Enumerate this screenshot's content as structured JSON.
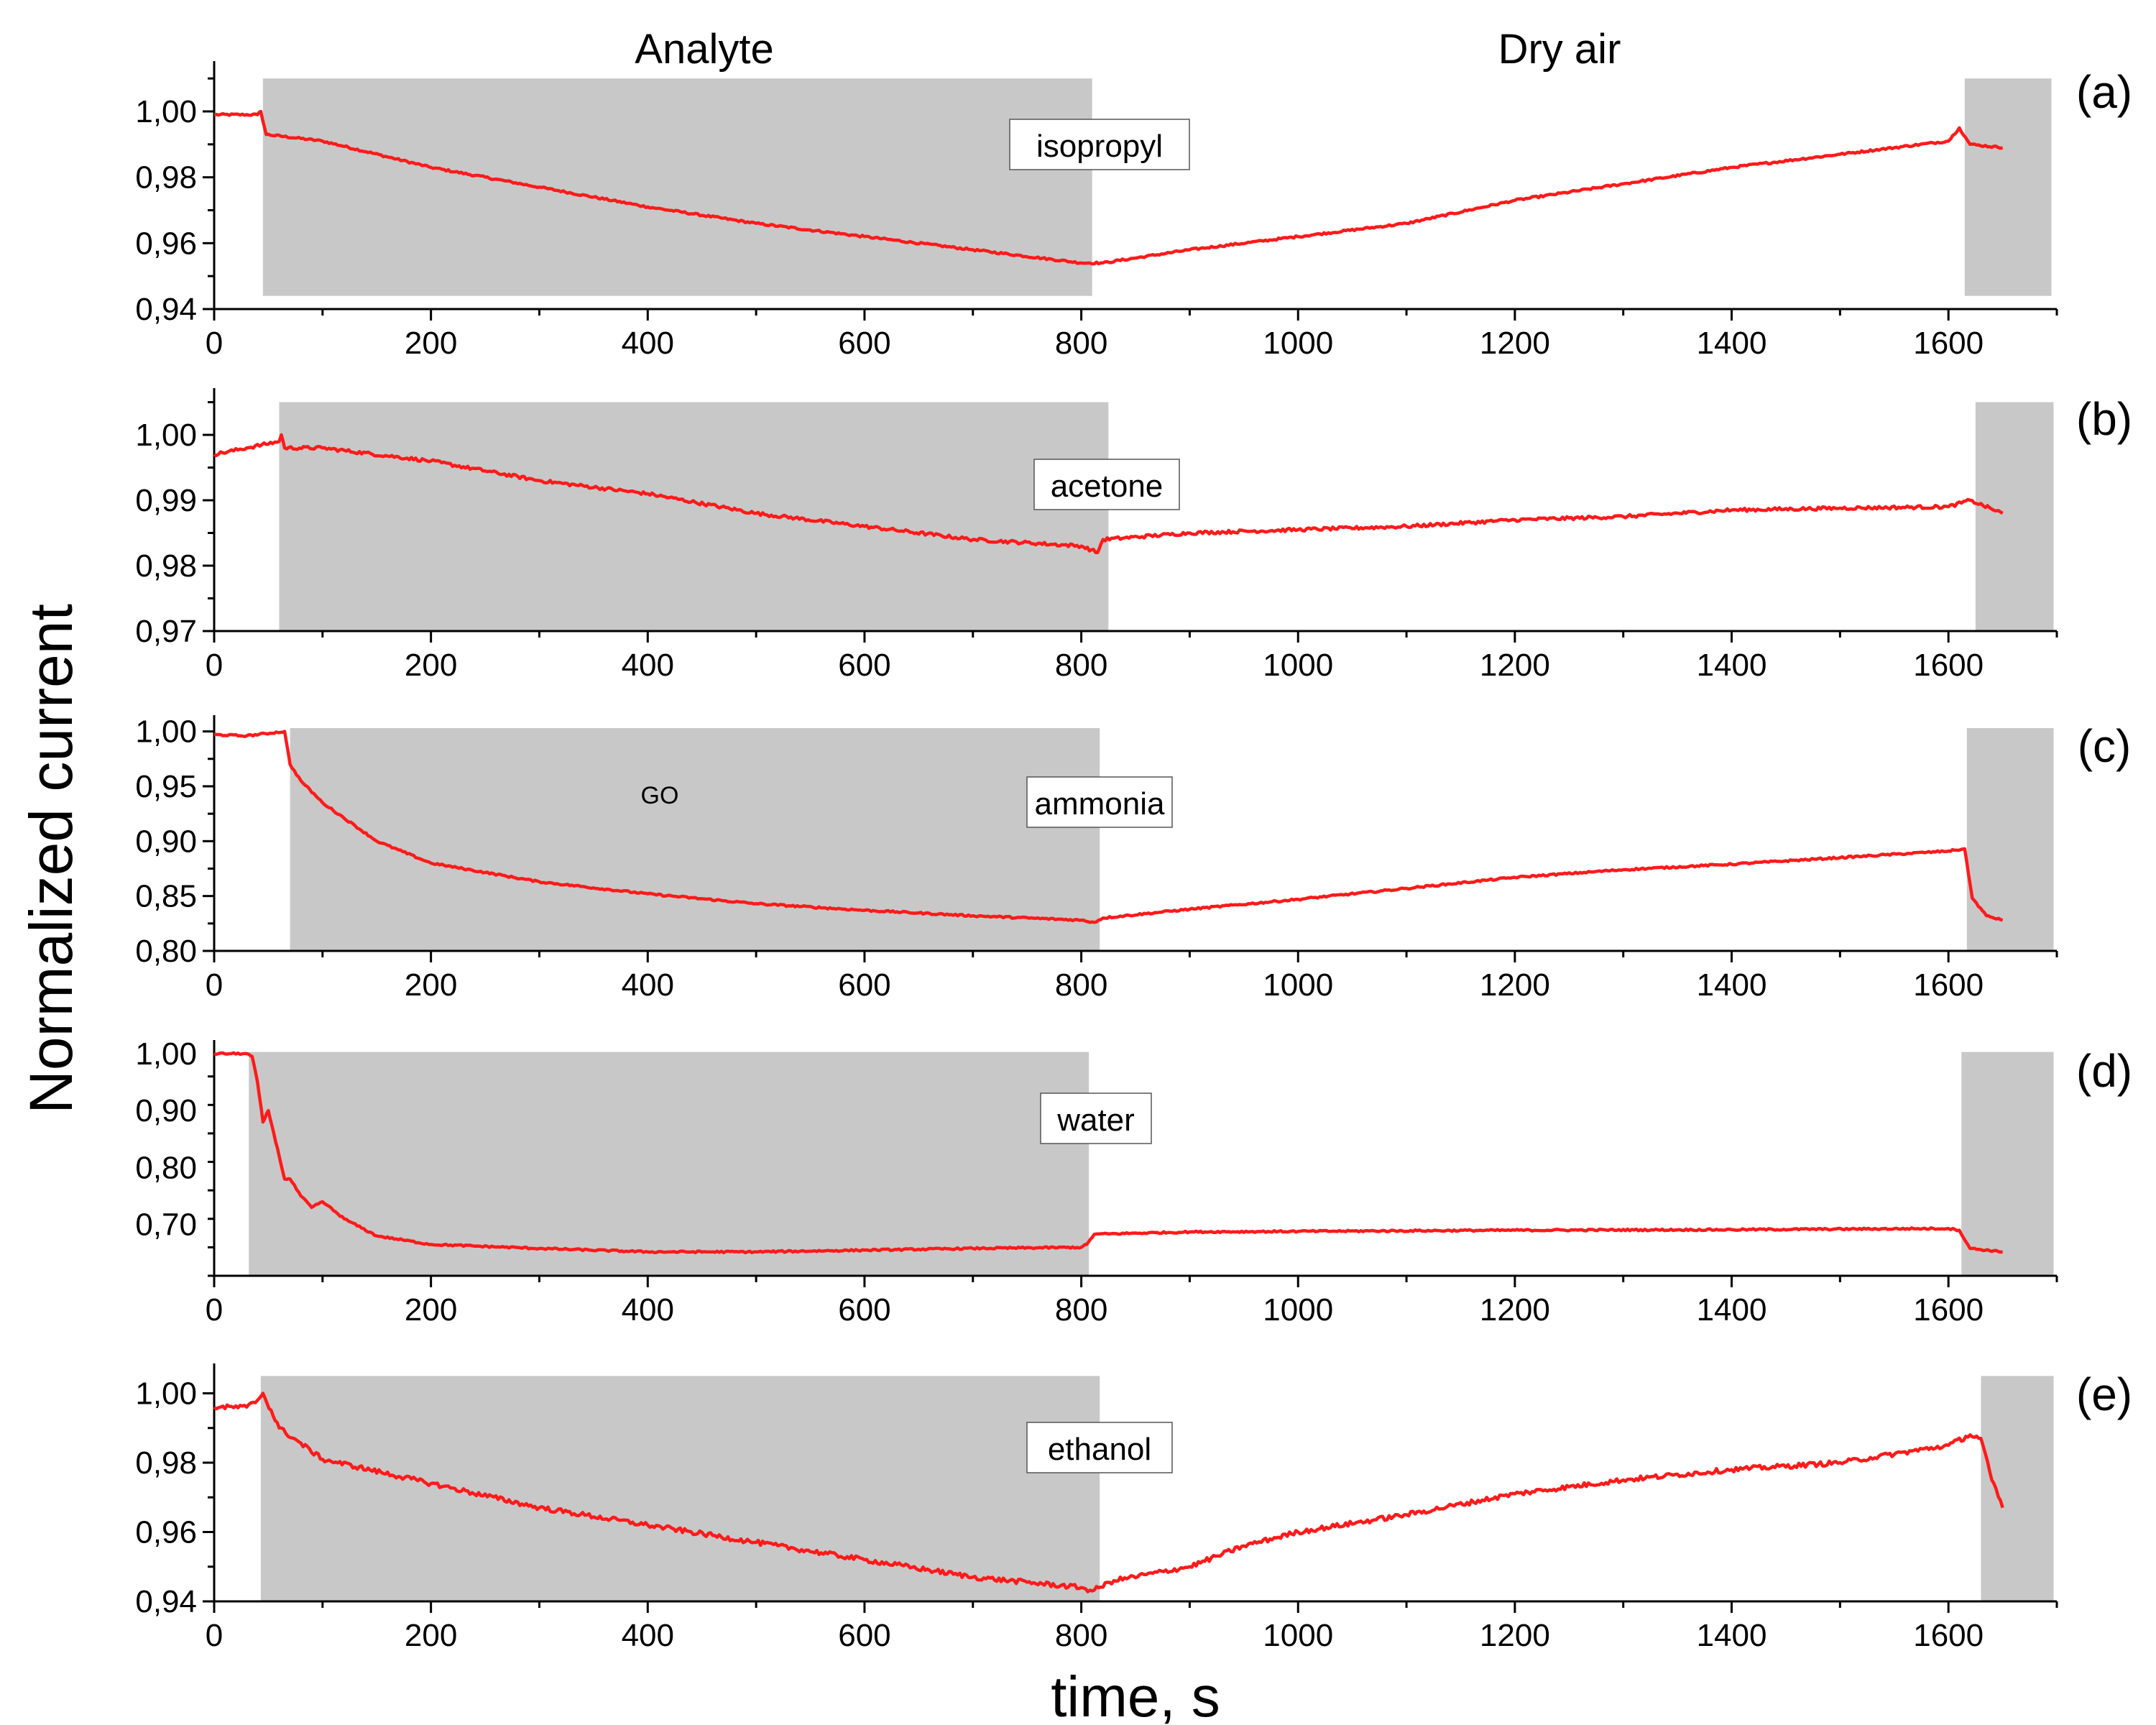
{
  "figure": {
    "ylabel": "Normalized current",
    "xlabel": "time, s",
    "header_left": "Analyte",
    "header_right": "Dry air"
  },
  "colors": {
    "line": "#ff1a1a",
    "shade": "#c8c8c8",
    "axis": "#000000",
    "label_box": "#ffffff"
  },
  "chart_data": [
    {
      "type": "line",
      "panel_label": "(a)",
      "analyte": "isopropyl",
      "xlim": [
        0,
        1700
      ],
      "ylim": [
        0.94,
        1.012
      ],
      "yticks": [
        0.94,
        0.96,
        0.98,
        1.0
      ],
      "yticklabels": [
        "0,94",
        "0,96",
        "0,98",
        "1,00"
      ],
      "xticks": [
        0,
        200,
        400,
        600,
        800,
        1000,
        1200,
        1400,
        1600
      ],
      "xticklabels": [
        "0",
        "200",
        "400",
        "600",
        "800",
        "1000",
        "1200",
        "1400",
        "1600"
      ],
      "shaded_intervals": [
        [
          45,
          810
        ],
        [
          1615,
          1695
        ]
      ],
      "shade_ytop": 1.01,
      "shade_ybottom": 0.944,
      "noise": 0.0003,
      "series": [
        {
          "x": [
            0,
            40,
            43,
            48,
            100,
            200,
            300,
            400,
            500,
            600,
            700,
            800,
            820,
            900,
            1000,
            1100,
            1200,
            1300,
            1400,
            1500,
            1600,
            1610,
            1620,
            1650
          ],
          "y": [
            0.999,
            0.999,
            1.0,
            0.993,
            0.991,
            0.983,
            0.977,
            0.971,
            0.966,
            0.962,
            0.958,
            0.954,
            0.954,
            0.958,
            0.962,
            0.966,
            0.973,
            0.978,
            0.983,
            0.987,
            0.991,
            0.995,
            0.99,
            0.989
          ]
        }
      ]
    },
    {
      "type": "line",
      "panel_label": "(b)",
      "analyte": "acetone",
      "xlim": [
        0,
        1700
      ],
      "ylim": [
        0.97,
        1.0055
      ],
      "yticks": [
        0.97,
        0.98,
        0.99,
        1.0
      ],
      "yticklabels": [
        "0,97",
        "0,98",
        "0,99",
        "1,00"
      ],
      "xticks": [
        0,
        200,
        400,
        600,
        800,
        1000,
        1200,
        1400,
        1600
      ],
      "xticklabels": [
        "0",
        "200",
        "400",
        "600",
        "800",
        "1000",
        "1200",
        "1400",
        "1600"
      ],
      "shaded_intervals": [
        [
          60,
          825
        ],
        [
          1625,
          1697
        ]
      ],
      "shade_ytop": 1.005,
      "shade_ybottom": 0.97,
      "noise": 0.00025,
      "series": [
        {
          "x": [
            0,
            30,
            60,
            62,
            65,
            100,
            200,
            300,
            400,
            500,
            600,
            700,
            800,
            815,
            820,
            900,
            1000,
            1100,
            1200,
            1300,
            1400,
            1500,
            1600,
            1620,
            1650
          ],
          "y": [
            0.997,
            0.998,
            0.999,
            1.0,
            0.998,
            0.998,
            0.996,
            0.993,
            0.991,
            0.988,
            0.986,
            0.984,
            0.983,
            0.982,
            0.984,
            0.985,
            0.9855,
            0.986,
            0.987,
            0.9875,
            0.9885,
            0.9888,
            0.989,
            0.99,
            0.988
          ]
        }
      ]
    },
    {
      "type": "line",
      "panel_label": "(c)",
      "analyte": "ammonia",
      "annotation": "GO",
      "xlim": [
        0,
        1700
      ],
      "ylim": [
        0.8,
        1.005
      ],
      "yticks": [
        0.8,
        0.85,
        0.9,
        0.95,
        1.0
      ],
      "yticklabels": [
        "0,80",
        "0,85",
        "0,90",
        "0,95",
        "1,00"
      ],
      "xticks": [
        0,
        200,
        400,
        600,
        800,
        1000,
        1200,
        1400,
        1600
      ],
      "xticklabels": [
        "0",
        "200",
        "400",
        "600",
        "800",
        "1000",
        "1200",
        "1400",
        "1600"
      ],
      "shaded_intervals": [
        [
          70,
          817
        ],
        [
          1617,
          1697
        ]
      ],
      "shade_ytop": 1.003,
      "shade_ybottom": 0.8,
      "noise": 0.0008,
      "series": [
        {
          "x": [
            0,
            30,
            65,
            70,
            80,
            100,
            150,
            200,
            300,
            400,
            500,
            600,
            700,
            800,
            812,
            820,
            900,
            1000,
            1100,
            1200,
            1300,
            1400,
            1500,
            1600,
            1615,
            1622,
            1635,
            1650
          ],
          "y": [
            0.997,
            0.996,
            1.0,
            0.97,
            0.955,
            0.935,
            0.9,
            0.88,
            0.863,
            0.852,
            0.843,
            0.837,
            0.832,
            0.828,
            0.826,
            0.83,
            0.838,
            0.847,
            0.857,
            0.867,
            0.874,
            0.879,
            0.885,
            0.891,
            0.893,
            0.848,
            0.832,
            0.828
          ]
        }
      ]
    },
    {
      "type": "line",
      "panel_label": "(d)",
      "analyte": "water",
      "xlim": [
        0,
        1700
      ],
      "ylim": [
        0.61,
        1.005
      ],
      "yticks": [
        0.7,
        0.8,
        0.9,
        1.0
      ],
      "yticklabels": [
        "0,70",
        "0,80",
        "0,90",
        "1,00"
      ],
      "xticks": [
        0,
        200,
        400,
        600,
        800,
        1000,
        1200,
        1400,
        1600
      ],
      "xticklabels": [
        "0",
        "200",
        "400",
        "600",
        "800",
        "1000",
        "1200",
        "1400",
        "1600"
      ],
      "shaded_intervals": [
        [
          32,
          807
        ],
        [
          1612,
          1697
        ]
      ],
      "shade_ytop": 1.003,
      "shade_ybottom": 0.61,
      "noise": 0.0015,
      "series": [
        {
          "x": [
            0,
            30,
            35,
            40,
            45,
            50,
            55,
            60,
            65,
            70,
            80,
            90,
            100,
            120,
            150,
            200,
            300,
            400,
            500,
            600,
            700,
            800,
            805,
            812,
            900,
            1000,
            1200,
            1400,
            1600,
            1610,
            1620,
            1650
          ],
          "y": [
            1.0,
            1.0,
            0.995,
            0.95,
            0.88,
            0.9,
            0.86,
            0.82,
            0.78,
            0.78,
            0.75,
            0.73,
            0.74,
            0.71,
            0.68,
            0.665,
            0.658,
            0.652,
            0.652,
            0.655,
            0.658,
            0.66,
            0.665,
            0.683,
            0.687,
            0.688,
            0.69,
            0.691,
            0.693,
            0.69,
            0.658,
            0.652
          ]
        }
      ]
    },
    {
      "type": "line",
      "panel_label": "(e)",
      "analyte": "ethanol",
      "xlim": [
        0,
        1700
      ],
      "ylim": [
        0.94,
        1.0055
      ],
      "yticks": [
        0.94,
        0.96,
        0.98,
        1.0
      ],
      "yticklabels": [
        "0,94",
        "0,96",
        "0,98",
        "1,00"
      ],
      "xticks": [
        0,
        200,
        400,
        600,
        800,
        1000,
        1200,
        1400,
        1600
      ],
      "xticklabels": [
        "0",
        "200",
        "400",
        "600",
        "800",
        "1000",
        "1200",
        "1400",
        "1600"
      ],
      "shaded_intervals": [
        [
          43,
          817
        ],
        [
          1630,
          1697
        ]
      ],
      "shade_ytop": 1.005,
      "shade_ybottom": 0.94,
      "noise": 0.0007,
      "series": [
        {
          "x": [
            0,
            30,
            40,
            45,
            60,
            100,
            200,
            300,
            400,
            500,
            600,
            700,
            800,
            810,
            830,
            900,
            950,
            1000,
            1100,
            1200,
            1300,
            1400,
            1500,
            1600,
            1620,
            1630,
            1640,
            1650
          ],
          "y": [
            0.996,
            0.996,
            0.998,
            1.0,
            0.99,
            0.981,
            0.974,
            0.967,
            0.962,
            0.957,
            0.952,
            0.947,
            0.944,
            0.943,
            0.946,
            0.95,
            0.956,
            0.96,
            0.965,
            0.971,
            0.975,
            0.978,
            0.98,
            0.985,
            0.988,
            0.987,
            0.975,
            0.967
          ]
        }
      ]
    }
  ]
}
